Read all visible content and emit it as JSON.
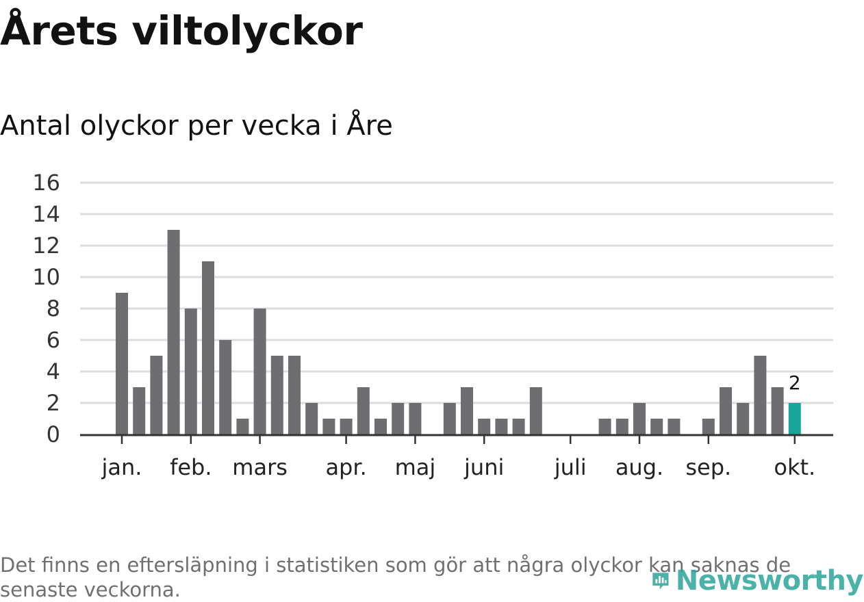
{
  "header": {
    "title": "Årets viltolyckor",
    "subtitle": "Antal olyckor per vecka i Åre"
  },
  "footer": {
    "note": "Det finns en eftersläpning i statistiken som gör att några olyckor kan saknas de senaste veckorna.",
    "logo_text": "Newsworthy"
  },
  "colors": {
    "bar": "#6e6d72",
    "highlight": "#17a59c",
    "grid": "#dddddd",
    "axis": "#333333"
  },
  "chart_data": {
    "type": "bar",
    "title": "Antal olyckor per vecka i Åre",
    "xlabel": "",
    "ylabel": "",
    "ylim": [
      0,
      16
    ],
    "y_ticks": [
      0,
      2,
      4,
      6,
      8,
      10,
      12,
      14,
      16
    ],
    "grid": true,
    "x_month_labels": [
      "jan.",
      "feb.",
      "mars",
      "apr.",
      "maj",
      "juni",
      "juli",
      "aug.",
      "sep.",
      "okt."
    ],
    "x_month_label_weeks": [
      1,
      5,
      9,
      14,
      18,
      22,
      27,
      31,
      35,
      40
    ],
    "weeks": [
      1,
      2,
      3,
      4,
      5,
      6,
      7,
      8,
      9,
      10,
      11,
      12,
      13,
      14,
      15,
      16,
      17,
      18,
      19,
      20,
      21,
      22,
      23,
      24,
      25,
      26,
      27,
      28,
      29,
      30,
      31,
      32,
      33,
      34,
      35,
      36,
      37,
      38,
      39,
      40
    ],
    "values": [
      9,
      3,
      5,
      13,
      8,
      11,
      6,
      1,
      8,
      5,
      5,
      2,
      1,
      1,
      3,
      1,
      2,
      2,
      0,
      2,
      3,
      1,
      1,
      1,
      3,
      0,
      0,
      0,
      1,
      1,
      2,
      1,
      1,
      0,
      1,
      3,
      2,
      5,
      3,
      2
    ],
    "highlight_week": 40,
    "highlight_label": "2"
  }
}
